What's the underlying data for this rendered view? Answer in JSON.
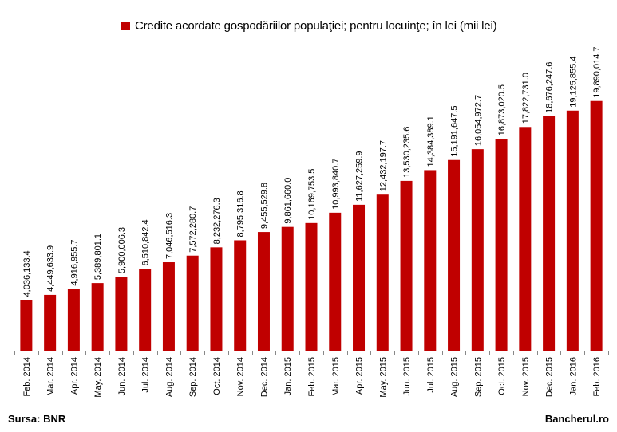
{
  "chart_data": {
    "type": "bar",
    "legend": "Credite acordate gospodăriilor populaţiei; pentru locuinţe; în lei (mii lei)",
    "legend_position": "top",
    "grid": false,
    "color": "#c00000",
    "categories": [
      "Feb. 2014",
      "Mar. 2014",
      "Apr. 2014",
      "May. 2014",
      "Jun. 2014",
      "Jul. 2014",
      "Aug. 2014",
      "Sep. 2014",
      "Oct. 2014",
      "Nov. 2014",
      "Dec. 2014",
      "Jan. 2015",
      "Feb. 2015",
      "Mar. 2015",
      "Apr. 2015",
      "May. 2015",
      "Jun. 2015",
      "Jul. 2015",
      "Aug. 2015",
      "Sep. 2015",
      "Oct. 2015",
      "Nov. 2015",
      "Dec. 2015",
      "Jan. 2016",
      "Feb. 2016"
    ],
    "values": [
      4036133.4,
      4449633.9,
      4916955.7,
      5389801.1,
      5900006.3,
      6510842.4,
      7046516.3,
      7572280.7,
      8232276.3,
      8795316.8,
      9455529.8,
      9861660.0,
      10169753.5,
      10993840.7,
      11627259.9,
      12432197.7,
      13530235.6,
      14384389.1,
      15191647.5,
      16054972.7,
      16873020.5,
      17822731.0,
      18676247.6,
      19125855.4,
      19890014.7
    ],
    "labels": [
      "4,036,133.4",
      "4,449,633.9",
      "4,916,955.7",
      "5,389,801.1",
      "5,900,006.3",
      "6,510,842.4",
      "7,046,516.3",
      "7,572,280.7",
      "8,232,276.3",
      "8,795,316.8",
      "9,455,529.8",
      "9,861,660.0",
      "10,169,753.5",
      "10,993,840.7",
      "11,627,259.9",
      "12,432,197.7",
      "13,530,235.6",
      "14,384,389.1",
      "15,191,647.5",
      "16,054,972.7",
      "16,873,020.5",
      "17,822,731.0",
      "18,676,247.6",
      "19,125,855.4",
      "19,890,014.7"
    ],
    "ylim": [
      0,
      20000000
    ]
  },
  "footer": {
    "source": "Sursa: BNR",
    "site": "Bancherul.ro"
  }
}
